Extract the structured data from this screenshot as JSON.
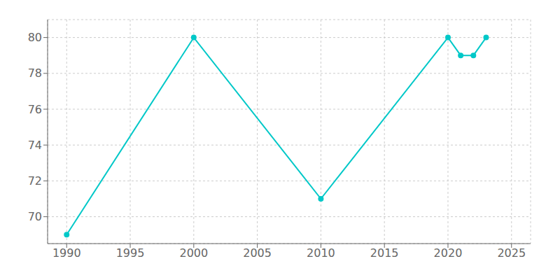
{
  "chart_data": {
    "type": "line",
    "x": [
      1990,
      2000,
      2010,
      2020,
      2021,
      2022,
      2023
    ],
    "values": [
      69,
      80,
      71,
      80,
      79,
      79,
      80
    ],
    "color": "#00c8c8",
    "marker": "circle",
    "xlim": [
      1988.5,
      2026.5
    ],
    "ylim": [
      68.5,
      81
    ],
    "xticks": [
      1990,
      1995,
      2000,
      2005,
      2010,
      2015,
      2020,
      2025
    ],
    "yticks": [
      70,
      72,
      74,
      76,
      78,
      80
    ],
    "grid": true
  }
}
